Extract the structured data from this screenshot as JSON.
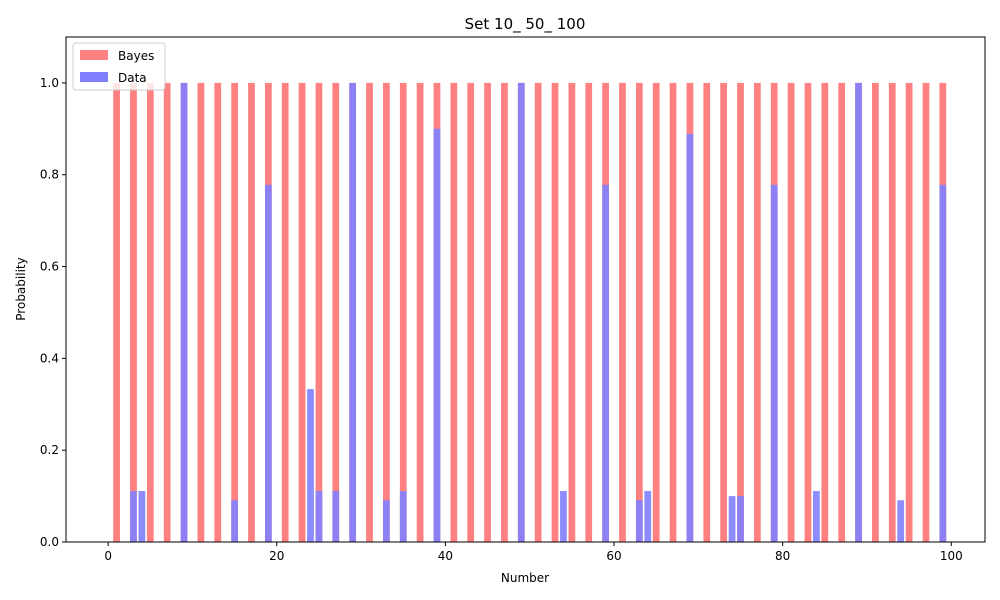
{
  "chart_data": {
    "type": "bar",
    "title": "Set 10_ 50_ 100",
    "xlabel": "Number",
    "ylabel": "Probability",
    "xlim": [
      -5,
      104
    ],
    "ylim": [
      0,
      1.1
    ],
    "xticks": [
      0,
      20,
      40,
      60,
      80,
      100
    ],
    "xtick_labels": [
      "0",
      "20",
      "40",
      "60",
      "80",
      "100"
    ],
    "yticks": [
      0.0,
      0.2,
      0.4,
      0.6,
      0.8,
      1.0
    ],
    "ytick_labels": [
      "0.0",
      "0.2",
      "0.4",
      "0.6",
      "0.8",
      "1.0"
    ],
    "grid": false,
    "legend_position": "top-left",
    "series": [
      {
        "name": "Bayes",
        "color": "#ff8080",
        "x": [
          1,
          3,
          5,
          7,
          9,
          11,
          13,
          15,
          17,
          19,
          21,
          23,
          25,
          27,
          29,
          31,
          33,
          35,
          37,
          39,
          41,
          43,
          45,
          47,
          49,
          51,
          53,
          55,
          57,
          59,
          61,
          63,
          65,
          67,
          69,
          71,
          73,
          75,
          77,
          79,
          81,
          83,
          85,
          87,
          89,
          91,
          93,
          95,
          97,
          99
        ],
        "values": [
          1,
          1,
          1,
          1,
          1,
          1,
          1,
          1,
          1,
          1,
          1,
          1,
          1,
          1,
          1,
          1,
          1,
          1,
          1,
          1,
          1,
          1,
          1,
          1,
          1,
          1,
          1,
          1,
          1,
          1,
          1,
          1,
          1,
          1,
          1,
          1,
          1,
          1,
          1,
          1,
          1,
          1,
          1,
          1,
          1,
          1,
          1,
          1,
          1,
          1
        ]
      },
      {
        "name": "Data",
        "color": "#8080ff",
        "x": [
          3,
          4,
          9,
          15,
          19,
          24,
          25,
          27,
          29,
          33,
          35,
          39,
          49,
          54,
          59,
          63,
          64,
          69,
          74,
          75,
          79,
          84,
          89,
          94,
          99
        ],
        "values": [
          0.111,
          0.111,
          1.0,
          0.091,
          0.778,
          0.333,
          0.111,
          0.111,
          1.0,
          0.091,
          0.111,
          0.9,
          1.0,
          0.111,
          0.778,
          0.091,
          0.111,
          0.889,
          0.1,
          0.1,
          0.778,
          0.111,
          1.0,
          0.091,
          0.778
        ]
      }
    ]
  }
}
